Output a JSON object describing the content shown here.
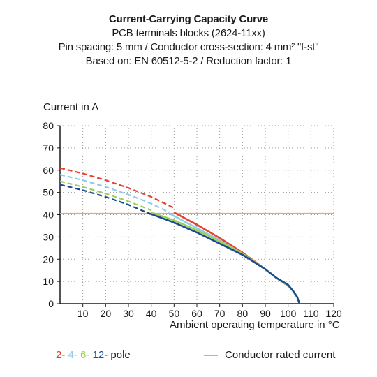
{
  "colors": {
    "pole2": "#e8402e",
    "pole4": "#8ecdea",
    "pole6": "#9ccf5a",
    "pole12": "#1b4a8e",
    "rated": "#f2a65a",
    "text": "#1a1a1a"
  },
  "legend": {
    "pole2": "2-",
    "pole4": "4-",
    "pole6": "6-",
    "pole12": "12-",
    "pole_suffix": " pole",
    "rated": "Conductor rated current"
  },
  "chart_data": {
    "type": "line",
    "title": "Current-Carrying Capacity Curve",
    "subtitles": [
      "PCB terminals blocks (2624-11xx)",
      "Pin spacing: 5 mm / Conductor cross-section: 4 mm² \"f-st\"",
      "Based on: EN 60512-5-2 / Reduction factor: 1"
    ],
    "xlabel": "Ambient operating temperature in °C",
    "ylabel": "Current in A",
    "xlim": [
      0,
      120
    ],
    "ylim": [
      0,
      80
    ],
    "xticks": [
      10,
      20,
      30,
      40,
      50,
      60,
      70,
      80,
      90,
      100,
      110,
      120
    ],
    "yticks": [
      0,
      10,
      20,
      30,
      40,
      50,
      60,
      70,
      80
    ],
    "grid": "dotted",
    "rated_current": 40.5,
    "series": [
      {
        "name": "2- pole",
        "color_key": "pole2",
        "dashed": [
          [
            0,
            61
          ],
          [
            10,
            58.5
          ],
          [
            20,
            55.5
          ],
          [
            30,
            52
          ],
          [
            40,
            48
          ],
          [
            50,
            43
          ]
        ],
        "solid": [
          [
            50,
            41
          ],
          [
            60,
            35.5
          ],
          [
            70,
            29.5
          ],
          [
            80,
            23
          ],
          [
            90,
            15.5
          ],
          [
            95,
            11.5
          ],
          [
            100,
            8
          ],
          [
            102,
            6
          ],
          [
            104,
            3
          ],
          [
            105,
            0
          ]
        ]
      },
      {
        "name": "4- pole",
        "color_key": "pole4",
        "dashed": [
          [
            0,
            58
          ],
          [
            10,
            55.5
          ],
          [
            20,
            52.5
          ],
          [
            30,
            49
          ],
          [
            40,
            45
          ],
          [
            48,
            41
          ]
        ],
        "solid": [
          [
            48,
            40.5
          ],
          [
            60,
            34
          ],
          [
            70,
            28.5
          ],
          [
            80,
            22.5
          ],
          [
            90,
            15.5
          ],
          [
            95,
            11.5
          ],
          [
            100,
            8
          ],
          [
            102,
            6
          ],
          [
            104,
            3
          ],
          [
            105,
            0
          ]
        ]
      },
      {
        "name": "6- pole",
        "color_key": "pole6",
        "dashed": [
          [
            0,
            55
          ],
          [
            10,
            52.5
          ],
          [
            20,
            49.5
          ],
          [
            30,
            46
          ],
          [
            40,
            42
          ]
        ],
        "solid": [
          [
            40,
            41
          ],
          [
            50,
            37.5
          ],
          [
            60,
            33
          ],
          [
            70,
            28
          ],
          [
            80,
            22.5
          ],
          [
            90,
            15.5
          ],
          [
            95,
            11.5
          ],
          [
            100,
            8
          ],
          [
            102,
            6
          ],
          [
            104,
            3
          ],
          [
            105,
            0
          ]
        ]
      },
      {
        "name": "12- pole",
        "color_key": "pole12",
        "dashed": [
          [
            0,
            53.5
          ],
          [
            10,
            51
          ],
          [
            20,
            48
          ],
          [
            30,
            44.5
          ],
          [
            38,
            41
          ]
        ],
        "solid": [
          [
            38,
            41
          ],
          [
            50,
            36.5
          ],
          [
            60,
            32
          ],
          [
            70,
            27
          ],
          [
            80,
            22
          ],
          [
            90,
            15.5
          ],
          [
            95,
            11.5
          ],
          [
            100,
            8.5
          ],
          [
            102,
            6
          ],
          [
            104,
            3
          ],
          [
            105,
            0
          ]
        ]
      }
    ]
  }
}
